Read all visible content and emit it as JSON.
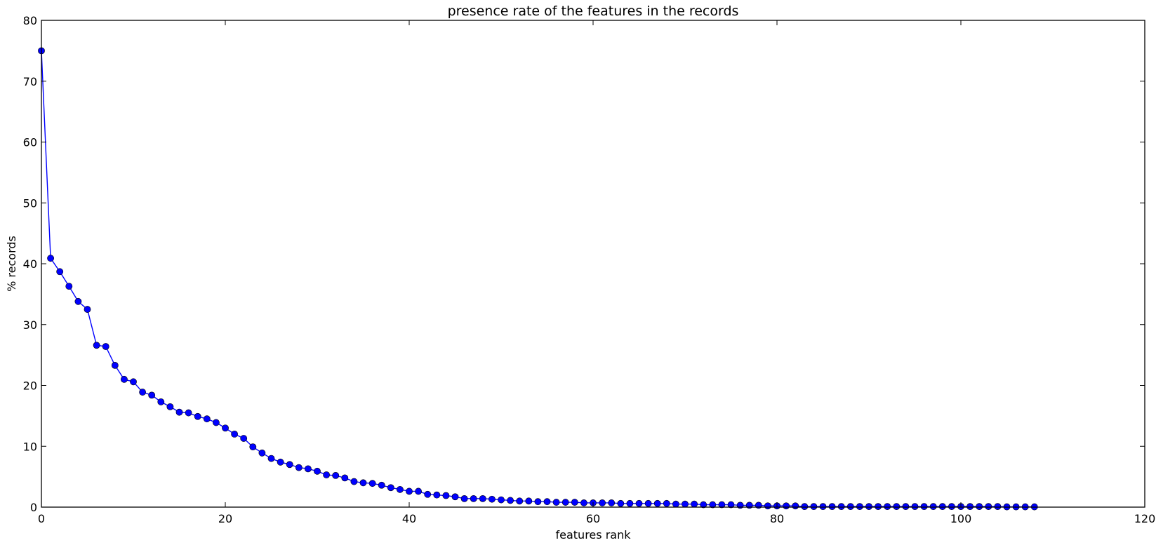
{
  "chart_data": {
    "type": "line",
    "title": "presence rate of the features in the records",
    "xlabel": "features rank",
    "ylabel": "% records",
    "xlim": [
      0,
      120
    ],
    "ylim": [
      0,
      80
    ],
    "x_ticks": [
      0,
      20,
      40,
      60,
      80,
      100,
      120
    ],
    "y_ticks": [
      0,
      10,
      20,
      30,
      40,
      50,
      60,
      70,
      80
    ],
    "grid": false,
    "legend": "none",
    "series": [
      {
        "color": "#0000ff",
        "marker": "circle",
        "x": [
          0,
          1,
          2,
          3,
          4,
          5,
          6,
          7,
          8,
          9,
          10,
          11,
          12,
          13,
          14,
          15,
          16,
          17,
          18,
          19,
          20,
          21,
          22,
          23,
          24,
          25,
          26,
          27,
          28,
          29,
          30,
          31,
          32,
          33,
          34,
          35,
          36,
          37,
          38,
          39,
          40,
          41,
          42,
          43,
          44,
          45,
          46,
          47,
          48,
          49,
          50,
          51,
          52,
          53,
          54,
          55,
          56,
          57,
          58,
          59,
          60,
          61,
          62,
          63,
          64,
          65,
          66,
          67,
          68,
          69,
          70,
          71,
          72,
          73,
          74,
          75,
          76,
          77,
          78,
          79,
          80,
          81,
          82,
          83,
          84,
          85,
          86,
          87,
          88,
          89,
          90,
          91,
          92,
          93,
          94,
          95,
          96,
          97,
          98,
          99,
          100,
          101,
          102,
          103,
          104,
          105,
          106,
          107,
          108
        ],
        "y": [
          75.0,
          40.9,
          38.7,
          36.3,
          33.8,
          32.5,
          26.6,
          26.4,
          23.3,
          21.0,
          20.6,
          18.9,
          18.4,
          17.3,
          16.5,
          15.6,
          15.5,
          14.9,
          14.5,
          13.9,
          13.0,
          12.0,
          11.3,
          9.9,
          8.9,
          8.0,
          7.4,
          7.0,
          6.5,
          6.3,
          5.9,
          5.3,
          5.2,
          4.8,
          4.2,
          4.0,
          3.9,
          3.6,
          3.2,
          2.9,
          2.6,
          2.6,
          2.1,
          2.0,
          1.9,
          1.7,
          1.4,
          1.4,
          1.4,
          1.3,
          1.2,
          1.1,
          1.0,
          1.0,
          0.9,
          0.9,
          0.8,
          0.8,
          0.8,
          0.7,
          0.7,
          0.7,
          0.7,
          0.6,
          0.6,
          0.6,
          0.6,
          0.6,
          0.6,
          0.5,
          0.5,
          0.5,
          0.4,
          0.4,
          0.4,
          0.4,
          0.3,
          0.3,
          0.3,
          0.2,
          0.2,
          0.2,
          0.2,
          0.1,
          0.1,
          0.1,
          0.1,
          0.1,
          0.1,
          0.1,
          0.1,
          0.1,
          0.1,
          0.1,
          0.1,
          0.1,
          0.1,
          0.1,
          0.1,
          0.1,
          0.1,
          0.1,
          0.1,
          0.1,
          0.1,
          0.05,
          0.05,
          0.05,
          0.05
        ]
      }
    ]
  }
}
